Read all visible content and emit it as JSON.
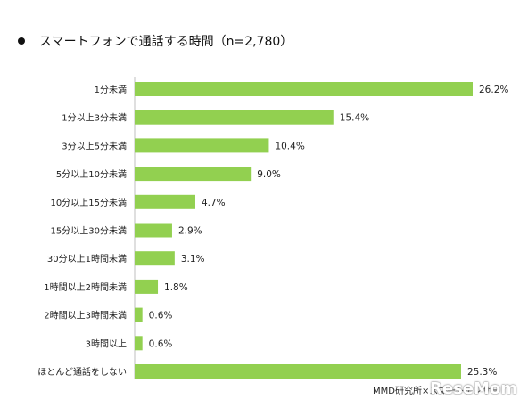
{
  "title": "スマートフォンで通話する時間（n=2,780）",
  "source": "MMD研究所×スマートアンサー",
  "logo_text": "ReseMom",
  "chart_data": {
    "type": "bar",
    "orientation": "horizontal",
    "categories": [
      "1分未満",
      "1分以上3分未満",
      "3分以上5分未満",
      "5分以上10分未満",
      "10分以上15分未満",
      "15分以上30分未満",
      "30分以上1時間未満",
      "1時間以上2時間未満",
      "2時間以上3時間未満",
      "3時間以上",
      "ほとんど通話をしない"
    ],
    "values": [
      26.2,
      15.4,
      10.4,
      9.0,
      4.7,
      2.9,
      3.1,
      1.8,
      0.6,
      0.6,
      25.3
    ],
    "value_labels": [
      "26.2%",
      "15.4%",
      "10.4%",
      "9.0%",
      "4.7%",
      "2.9%",
      "3.1%",
      "1.8%",
      "0.6%",
      "0.6%",
      "25.3%"
    ],
    "bar_color": "#92d050",
    "xlim": [
      0,
      27
    ],
    "grid": false,
    "legend": "none"
  }
}
